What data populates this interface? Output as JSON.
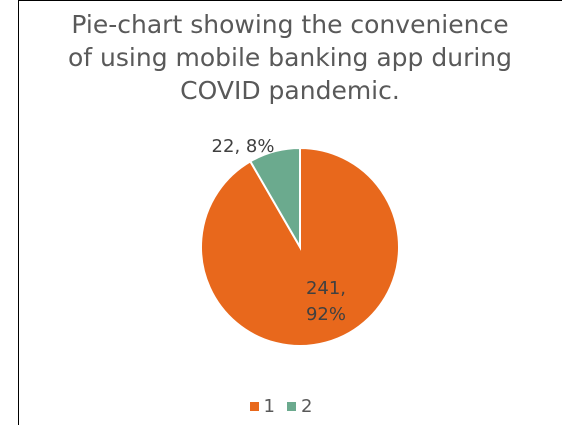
{
  "colors": {
    "series_1": "#E8681C",
    "series_2": "#6BAA8E",
    "title": "#595959",
    "label": "#404040"
  },
  "chart_data": {
    "type": "pie",
    "title_lines": [
      "Pie-chart showing the convenience",
      "of using mobile banking app during",
      "COVID pandemic."
    ],
    "categories": [
      "1",
      "2"
    ],
    "values": [
      241,
      22
    ],
    "percent_labels": [
      "92%",
      "8%"
    ],
    "data_labels": [
      [
        "241,",
        "92%"
      ],
      [
        "22, 8%"
      ]
    ],
    "legend": [
      "1",
      "2"
    ],
    "legend_position": "bottom"
  }
}
